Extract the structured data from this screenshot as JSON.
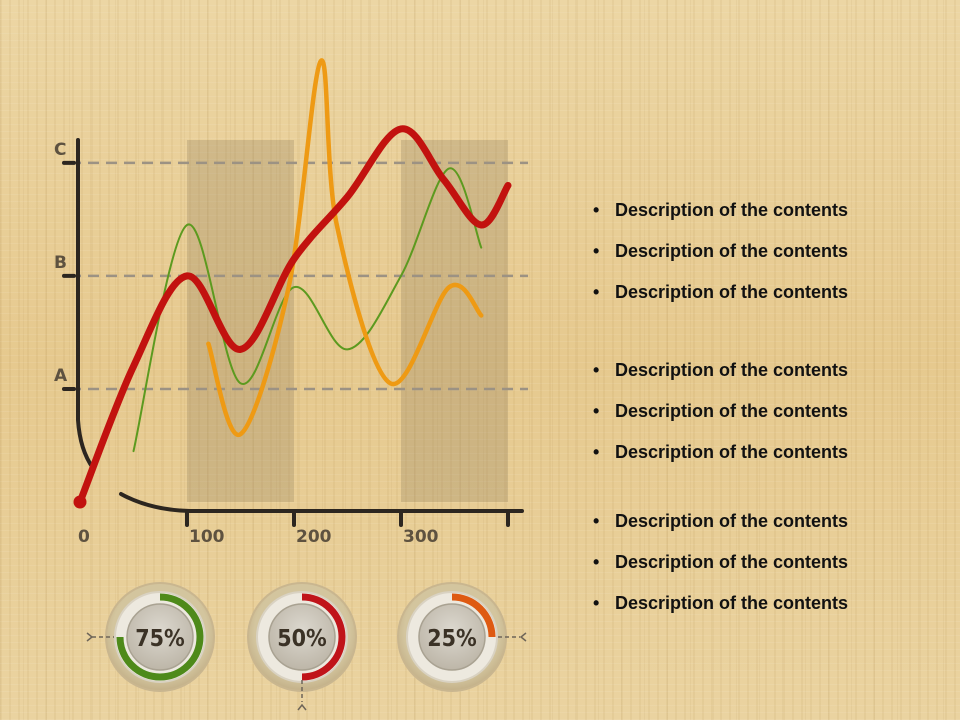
{
  "chart_data": {
    "type": "line",
    "x_ticks": [
      "0",
      "100",
      "200",
      "300"
    ],
    "y_ticks": [
      "A",
      "B",
      "C"
    ],
    "xlim": [
      0,
      400
    ],
    "ylim": [
      0,
      3.6
    ],
    "series": [
      {
        "color": "#c2120f",
        "x": [
          0,
          50,
          100,
          150,
          200,
          250,
          300,
          340,
          375,
          400
        ],
        "y": [
          0,
          1.2,
          2.0,
          1.35,
          2.15,
          2.7,
          3.3,
          2.85,
          2.45,
          2.8
        ]
      },
      {
        "color": "#5c9a1f",
        "x": [
          50,
          100,
          150,
          200,
          250,
          300,
          345,
          375
        ],
        "y": [
          0.45,
          2.45,
          1.05,
          1.9,
          1.35,
          2.0,
          2.95,
          2.25
        ]
      },
      {
        "color": "#ee9a14",
        "x": [
          120,
          150,
          195,
          225,
          240,
          290,
          345,
          375
        ],
        "y": [
          1.4,
          0.6,
          1.9,
          3.9,
          2.45,
          1.05,
          1.9,
          1.65
        ]
      }
    ],
    "gauges": [
      {
        "label": "75%",
        "value": 0.75,
        "color": "#4e8a1a"
      },
      {
        "label": "50%",
        "value": 0.5,
        "color": "#c0141a"
      },
      {
        "label": "25%",
        "value": 0.25,
        "color": "#de5a12"
      }
    ]
  },
  "bullets": [
    "Description of the contents",
    "Description of the contents",
    "Description of the contents",
    "Description of the contents",
    "Description of the contents",
    "Description of the contents",
    "Description of the contents",
    "Description of the contents",
    "Description of the contents"
  ],
  "bullet_symbol": "•"
}
